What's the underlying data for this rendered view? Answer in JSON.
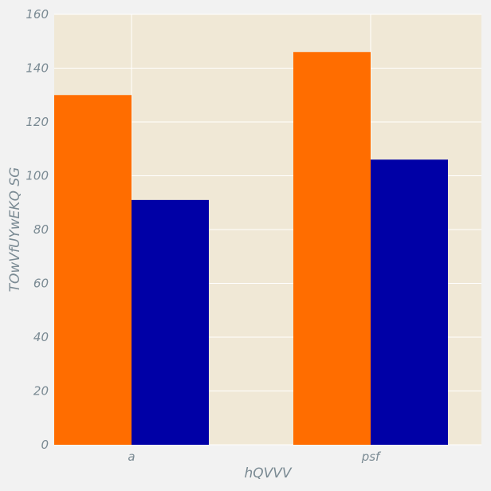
{
  "chart_data": {
    "type": "bar",
    "title": "",
    "xlabel": "hQVVV",
    "ylabel": "TOwVfUYwEKQ SG",
    "categories": [
      "a",
      "psf"
    ],
    "series": [
      {
        "values": [
          130,
          146
        ],
        "color": "#ff6d00"
      },
      {
        "values": [
          91,
          106
        ],
        "color": "#0000a6"
      }
    ],
    "ylim": [
      0,
      160
    ],
    "yticks": [
      "0",
      "20",
      "40",
      "60",
      "80",
      "100",
      "120",
      "140",
      "160"
    ],
    "grid": true,
    "legend": "none",
    "colors": {
      "plot_background": "#f0e8d6",
      "page_background": "#f2f2f2",
      "grid": "#ffffff",
      "text": "#7a8a93"
    }
  }
}
